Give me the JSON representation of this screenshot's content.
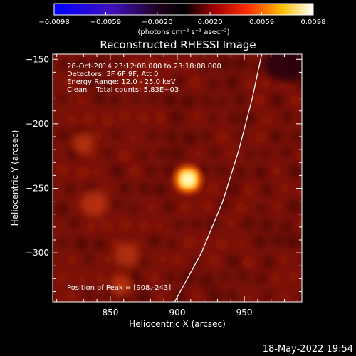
{
  "chart_data": {
    "type": "heatmap",
    "title": "Reconstructed RHESSI Image",
    "xlabel": "Heliocentric X (arcsec)",
    "ylabel": "Heliocentric Y (arcsec)",
    "xlim": [
      807,
      993
    ],
    "ylim": [
      -338,
      -146
    ],
    "x_ticks": [
      850,
      900,
      950
    ],
    "x_tick_labels": [
      "850",
      "900",
      "950"
    ],
    "y_ticks": [
      -150,
      -200,
      -250,
      -300
    ],
    "y_tick_labels": [
      "−150",
      "−200",
      "−250",
      "−300"
    ],
    "colorbar": {
      "min": -0.0098,
      "max": 0.0098,
      "ticks": [
        -0.0098,
        -0.0059,
        -0.002,
        0.002,
        0.0059,
        0.0098
      ],
      "tick_labels": [
        "−0.0098",
        "−0.0059",
        "−0.0020",
        "0.0020",
        "0.0059",
        "0.0098"
      ],
      "unit_label": "(photons cm⁻² s⁻¹ asec⁻²)",
      "colormap": [
        "#0000ff",
        "#5a0aa0",
        "#000000",
        "#c80000",
        "#ff6400",
        "#ffe000",
        "#ffffff"
      ]
    },
    "annotations": {
      "time": "28-Oct-2014 23:12:08.000 to 23:18:08.000",
      "detectors": "Detectors: 3F 6F 9F, Att 0",
      "energy": "Energy Range: 12.0 - 25.0 keV",
      "clean": "Clean    Total counts: 5.83E+03",
      "peak": "Position of Peak = [908,-243]"
    },
    "peak_position": [
      908,
      -243
    ],
    "limb_curve": [
      [
        963,
        -146
      ],
      [
        956,
        -180
      ],
      [
        946,
        -220
      ],
      [
        934,
        -260
      ],
      [
        918,
        -300
      ],
      [
        898,
        -338
      ]
    ]
  },
  "footer": {
    "timestamp": "18-May-2022 19:54"
  }
}
